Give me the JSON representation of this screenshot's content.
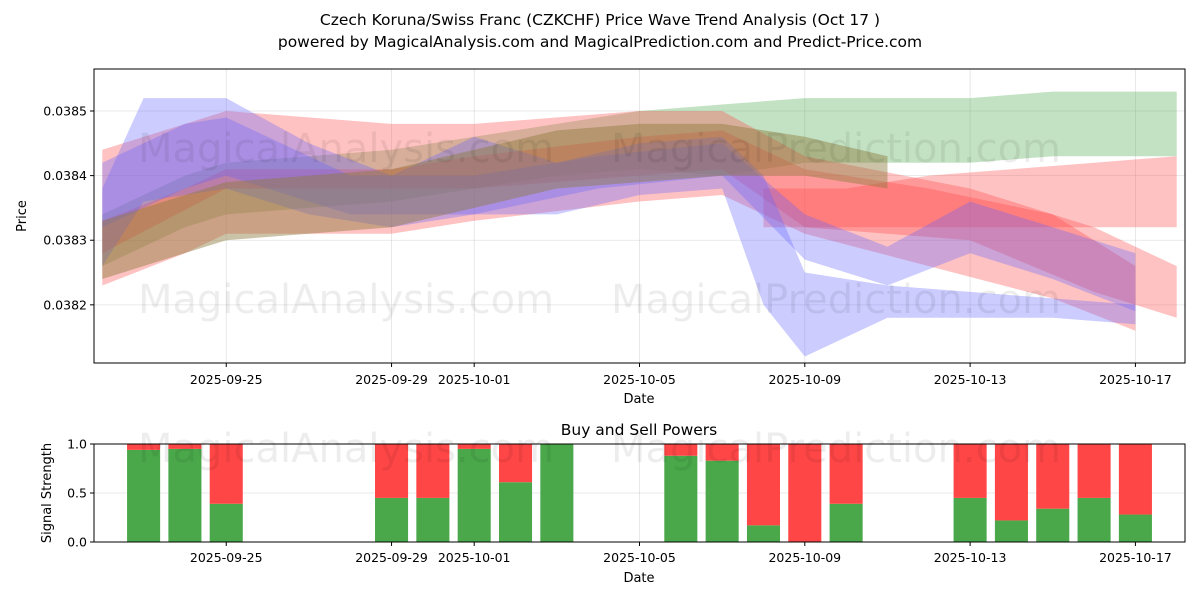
{
  "title": "Czech Koruna/Swiss Franc (CZKCHF) Price Wave Trend Analysis (Oct 17 )",
  "subtitle": "powered by MagicalAnalysis.com and MagicalPrediction.com and Predict-Price.com",
  "watermarks": [
    "MagicalAnalysis.com",
    "MagicalPrediction.com",
    "MagicalAnalysis.com",
    "MagicalPrediction.com",
    "MagicalAnalysis.com",
    "MagicalPrediction.com"
  ],
  "colors": {
    "green": "#4aa84a",
    "red": "#ff4646",
    "blue": "#6464ff",
    "olive": "#8c7a3c"
  },
  "chart_data": [
    {
      "type": "area",
      "title": "",
      "xlabel": "Date",
      "ylabel": "Price",
      "x_ticks": [
        "2025-09-25",
        "2025-09-29",
        "2025-10-01",
        "2025-10-05",
        "2025-10-09",
        "2025-10-13",
        "2025-10-17"
      ],
      "y_ticks": [
        "0.0382",
        "0.0383",
        "0.0384",
        "0.0385"
      ],
      "ylim": [
        0.03811,
        0.038565
      ],
      "xlim": [
        "2025-09-21.8",
        "2025-10-18.2"
      ],
      "grid": true,
      "series": [
        {
          "name": "green wave band",
          "color": "green",
          "x": [
            "2025-09-22",
            "2025-09-24",
            "2025-09-25",
            "2025-09-27",
            "2025-09-29",
            "2025-10-01",
            "2025-10-03",
            "2025-10-05",
            "2025-10-07",
            "2025-10-09",
            "2025-10-11",
            "2025-10-13",
            "2025-10-15",
            "2025-10-18"
          ],
          "upper": [
            0.03834,
            0.0384,
            0.03842,
            0.03843,
            0.03844,
            0.03846,
            0.03848,
            0.0385,
            0.03851,
            0.03852,
            0.03852,
            0.03852,
            0.03853,
            0.03853
          ],
          "lower": [
            0.03826,
            0.03832,
            0.03834,
            0.03835,
            0.03836,
            0.03838,
            0.0384,
            0.03841,
            0.0384,
            0.03842,
            0.03842,
            0.03842,
            0.03843,
            0.03843
          ]
        },
        {
          "name": "red wave band 1",
          "color": "red",
          "x": [
            "2025-09-22",
            "2025-09-25",
            "2025-09-29",
            "2025-10-01",
            "2025-10-05",
            "2025-10-07",
            "2025-10-09",
            "2025-10-13",
            "2025-10-16",
            "2025-10-18"
          ],
          "upper": [
            0.03844,
            0.0385,
            0.03848,
            0.03848,
            0.0385,
            0.0385,
            0.03843,
            0.03838,
            0.03832,
            0.03826
          ],
          "lower": [
            0.03828,
            0.03838,
            0.03838,
            0.03838,
            0.0384,
            0.03841,
            0.03832,
            0.0383,
            0.03822,
            0.03818
          ]
        },
        {
          "name": "red wave band 2",
          "color": "red",
          "x": [
            "2025-09-22",
            "2025-09-24",
            "2025-09-25",
            "2025-09-29",
            "2025-10-01",
            "2025-10-05",
            "2025-10-07",
            "2025-10-09",
            "2025-10-12",
            "2025-10-15",
            "2025-10-17"
          ],
          "upper": [
            0.03833,
            0.03838,
            0.03841,
            0.03841,
            0.03843,
            0.03846,
            0.03847,
            0.03841,
            0.03838,
            0.03834,
            0.03826
          ],
          "lower": [
            0.03823,
            0.03828,
            0.03831,
            0.03831,
            0.03833,
            0.03836,
            0.03837,
            0.03831,
            0.03826,
            0.03821,
            0.03816
          ]
        },
        {
          "name": "red wave band 3",
          "color": "red",
          "x": [
            "2025-10-08",
            "2025-10-10",
            "2025-10-12",
            "2025-10-14",
            "2025-10-16",
            "2025-10-18"
          ],
          "upper": [
            0.03838,
            0.03838,
            0.0384,
            0.03841,
            0.03842,
            0.03843
          ],
          "lower": [
            0.03832,
            0.03832,
            0.03832,
            0.03832,
            0.03832,
            0.03832
          ]
        },
        {
          "name": "blue wave band 1",
          "color": "blue",
          "x": [
            "2025-09-22",
            "2025-09-23",
            "2025-09-25",
            "2025-09-27",
            "2025-09-29",
            "2025-10-01",
            "2025-10-03",
            "2025-10-05",
            "2025-10-07",
            "2025-10-08",
            "2025-10-09",
            "2025-10-11",
            "2025-10-13",
            "2025-10-15",
            "2025-10-17"
          ],
          "upper": [
            0.03838,
            0.03852,
            0.03852,
            0.03845,
            0.0384,
            0.03846,
            0.03842,
            0.03845,
            0.03846,
            0.0384,
            0.03825,
            0.03823,
            0.03822,
            0.03821,
            0.0382
          ],
          "lower": [
            0.03826,
            0.03836,
            0.03838,
            0.03834,
            0.03832,
            0.03834,
            0.03834,
            0.03837,
            0.03838,
            0.0382,
            0.03812,
            0.03818,
            0.03818,
            0.03818,
            0.03817
          ]
        },
        {
          "name": "blue wave band 2",
          "color": "blue",
          "x": [
            "2025-09-22",
            "2025-09-24",
            "2025-09-25",
            "2025-09-28",
            "2025-10-01",
            "2025-10-04",
            "2025-10-07",
            "2025-10-09",
            "2025-10-11",
            "2025-10-13",
            "2025-10-15",
            "2025-10-17"
          ],
          "upper": [
            0.03842,
            0.03848,
            0.03849,
            0.0384,
            0.0384,
            0.03843,
            0.03845,
            0.03834,
            0.03829,
            0.03836,
            0.03832,
            0.03828
          ],
          "lower": [
            0.03832,
            0.03838,
            0.0384,
            0.03834,
            0.03834,
            0.03838,
            0.0384,
            0.03827,
            0.03823,
            0.03828,
            0.03824,
            0.03819
          ]
        },
        {
          "name": "olive wave band",
          "color": "olive",
          "x": [
            "2025-09-22",
            "2025-09-25",
            "2025-09-29",
            "2025-10-01",
            "2025-10-03",
            "2025-10-05",
            "2025-10-07",
            "2025-10-09",
            "2025-10-11"
          ],
          "upper": [
            0.03833,
            0.03839,
            0.03841,
            0.03844,
            0.03847,
            0.03848,
            0.03848,
            0.03846,
            0.03843
          ],
          "lower": [
            0.03824,
            0.0383,
            0.03832,
            0.03835,
            0.03838,
            0.03839,
            0.0384,
            0.0384,
            0.03838
          ]
        }
      ]
    },
    {
      "type": "bar",
      "title": "Buy and Sell Powers",
      "xlabel": "Date",
      "ylabel": "Signal Strength",
      "ylim": [
        0,
        1
      ],
      "y_ticks": [
        "0.0",
        "0.5",
        "1.0"
      ],
      "x_ticks": [
        "2025-09-25",
        "2025-09-29",
        "2025-10-01",
        "2025-10-05",
        "2025-10-09",
        "2025-10-13",
        "2025-10-17"
      ],
      "categories": [
        "2025-09-23",
        "2025-09-24",
        "2025-09-25",
        "2025-09-29",
        "2025-09-30",
        "2025-10-01",
        "2025-10-02",
        "2025-10-03",
        "2025-10-06",
        "2025-10-07",
        "2025-10-08",
        "2025-10-09",
        "2025-10-10",
        "2025-10-13",
        "2025-10-14",
        "2025-10-15",
        "2025-10-16",
        "2025-10-17"
      ],
      "series": [
        {
          "name": "Buy",
          "color": "green",
          "values": [
            0.94,
            0.95,
            0.39,
            0.45,
            0.45,
            0.95,
            0.61,
            1.0,
            0.88,
            0.83,
            0.17,
            0.0,
            0.39,
            0.45,
            0.22,
            0.34,
            0.45,
            0.28
          ]
        },
        {
          "name": "Sell",
          "color": "red",
          "values": [
            0.06,
            0.05,
            0.61,
            0.55,
            0.55,
            0.05,
            0.39,
            0.0,
            0.12,
            0.17,
            0.83,
            1.0,
            0.61,
            0.55,
            0.78,
            0.66,
            0.55,
            0.72
          ]
        }
      ]
    }
  ]
}
